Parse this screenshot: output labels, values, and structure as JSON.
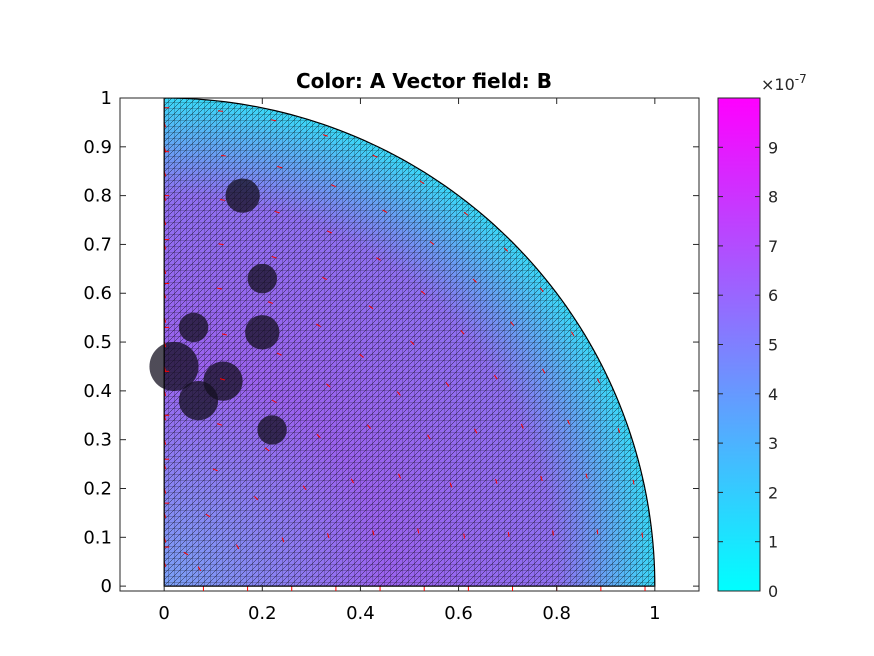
{
  "chart_data": {
    "type": "heatmap",
    "title": "Color: A  Vector field: B",
    "xlabel": "",
    "ylabel": "",
    "xlim": [
      -0.09,
      1.09
    ],
    "ylim": [
      -0.01,
      1.0
    ],
    "xticks": [
      0,
      0.2,
      0.4,
      0.6,
      0.8,
      1
    ],
    "xtick_labels": [
      "0",
      "0.2",
      "0.4",
      "0.6",
      "0.8",
      "1"
    ],
    "yticks": [
      0,
      0.1,
      0.2,
      0.3,
      0.4,
      0.5,
      0.6,
      0.7,
      0.8,
      0.9,
      1
    ],
    "ytick_labels": [
      "0",
      "0.1",
      "0.2",
      "0.3",
      "0.4",
      "0.5",
      "0.6",
      "0.7",
      "0.8",
      "0.9",
      "1"
    ],
    "domain": "quarter-disk",
    "domain_radius": 1,
    "colorbar": {
      "colormap": "cool",
      "color_min": "#00ffff",
      "color_max": "#ff00ff",
      "range": [
        0,
        10
      ],
      "ticks": [
        0,
        1,
        2,
        3,
        4,
        5,
        6,
        7,
        8,
        9
      ],
      "tick_labels": [
        "0",
        "1",
        "2",
        "3",
        "4",
        "5",
        "6",
        "7",
        "8",
        "9"
      ],
      "multiplier_base": "×10",
      "multiplier_exponent": "-7"
    },
    "vector_color": "#ff0000",
    "mesh_color": "#000000"
  }
}
